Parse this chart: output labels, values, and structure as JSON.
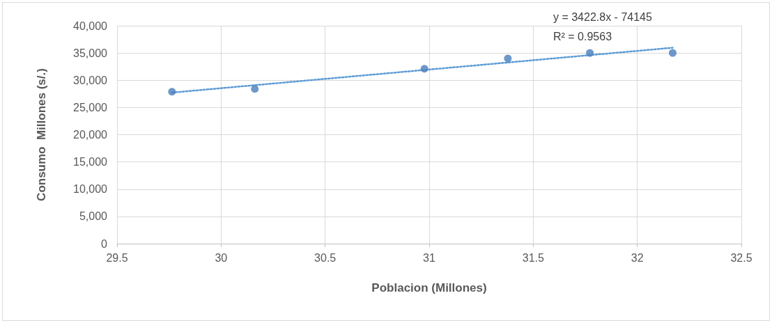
{
  "chart_data": {
    "type": "scatter",
    "xlabel": "Poblacion (Millones)",
    "ylabel": "Consumo  Millones (s/.)",
    "annotations": [
      "y = 3422.8x - 74145",
      "R² = 0.9563"
    ],
    "x": [
      29.764,
      30.162,
      30.977,
      31.378,
      31.772,
      32.17
    ],
    "series": [
      {
        "color": "#4a7ebb",
        "values": [
          27900,
          28400,
          32100,
          34000,
          35000,
          35000
        ]
      },
      {
        "type": "line",
        "color": "#5b9bd5",
        "x": [
          29.764,
          32.17
        ],
        "values": [
          27729,
          35966
        ],
        "line_style": "dotted",
        "marker": "none"
      }
    ],
    "xlim": [
      29.5,
      32.5
    ],
    "xticks": [
      29.5,
      30,
      30.5,
      31,
      31.5,
      32,
      32.5
    ],
    "ylim": [
      0,
      40000
    ],
    "yticks": [
      0,
      {
        "value": 5000,
        "label": "5,000"
      },
      {
        "value": 10000,
        "label": "10,000"
      },
      {
        "value": 15000,
        "label": "15,000"
      },
      {
        "value": 20000,
        "label": "20,000"
      },
      {
        "value": 25000,
        "label": "25,000"
      },
      {
        "value": 30000,
        "label": "30,000"
      },
      {
        "value": 35000,
        "label": "35,000"
      },
      {
        "value": 40000,
        "label": "40,000"
      }
    ],
    "grid": true,
    "marker": "circle"
  }
}
